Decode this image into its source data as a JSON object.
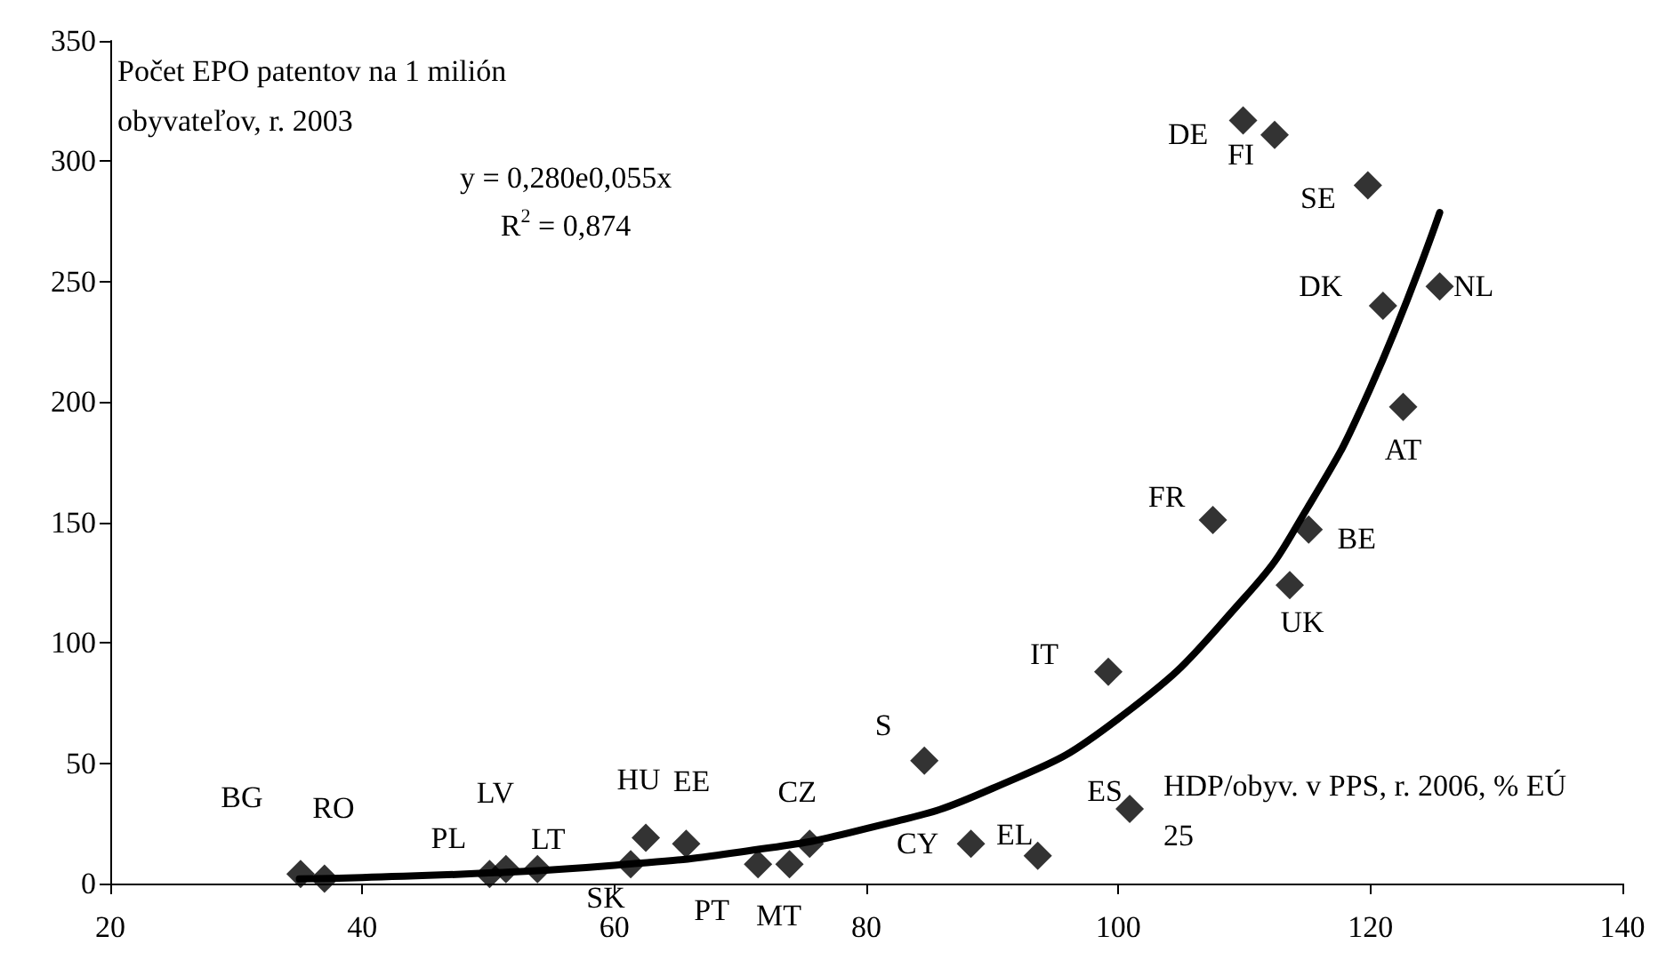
{
  "chart_data": {
    "type": "scatter",
    "ylabel": "Počet EPO patentov na 1 milión obyvateľov, r. 2003",
    "xlabel": "HDP/obyv. v PPS, r. 2006, % EÚ 25",
    "xlim": [
      20,
      140
    ],
    "xticks": [
      20,
      40,
      60,
      80,
      100,
      120,
      140
    ],
    "ylim": [
      0,
      350
    ],
    "yticks": [
      0,
      50,
      100,
      150,
      200,
      250,
      300,
      350
    ],
    "grid": false,
    "series": [
      {
        "marker": "diamond",
        "color": "#000000",
        "x": [
          35.1,
          37.0,
          50.1,
          51.4,
          53.9,
          61.3,
          62.5,
          65.7,
          71.4,
          73.9,
          75.5,
          84.6,
          88.3,
          93.6,
          100.9,
          99.2,
          107.5,
          115.1,
          113.6,
          109.9,
          112.4,
          119.8,
          121.0,
          125.5,
          122.6
        ],
        "values": [
          4,
          2,
          4,
          6,
          6,
          8,
          19,
          16.5,
          8,
          8,
          16.5,
          51,
          16.5,
          11.5,
          31,
          88,
          151,
          147,
          124,
          317,
          311,
          290,
          240,
          248,
          198
        ]
      },
      {
        "type": "line",
        "marker": "none",
        "line_style": "solid",
        "color": "#000000",
        "x": [
          35,
          40,
          50,
          60,
          70,
          80,
          90,
          100,
          110,
          115,
          120,
          125.5
        ],
        "values": [
          1.9,
          2.5,
          4.4,
          7.6,
          13.1,
          22.8,
          39.5,
          68.5,
          118.7,
          156,
          205.8,
          278.7
        ]
      }
    ],
    "annotations": [
      "y = 0,280e0,055x",
      "R$^{2}$ = 0,874",
      {
        "text": "BG",
        "x": 35.1,
        "y": 4
      },
      {
        "text": "RO",
        "x": 37.0,
        "y": 2
      },
      {
        "text": "PL",
        "x": 50.1,
        "y": 4
      },
      {
        "text": "LV",
        "x": 51.4,
        "y": 6
      },
      {
        "text": "LT",
        "x": 53.9,
        "y": 6
      },
      {
        "text": "SK",
        "x": 61.3,
        "y": 8
      },
      {
        "text": "HU",
        "x": 62.5,
        "y": 19
      },
      {
        "text": "EE",
        "x": 65.7,
        "y": 16.5
      },
      {
        "text": "PT",
        "x": 71.4,
        "y": 8
      },
      {
        "text": "MT",
        "x": 73.9,
        "y": 8
      },
      {
        "text": "CZ",
        "x": 75.5,
        "y": 16.5
      },
      {
        "text": "S",
        "x": 84.6,
        "y": 51
      },
      {
        "text": "CY",
        "x": 88.3,
        "y": 16.5
      },
      {
        "text": "EL",
        "x": 93.6,
        "y": 11.5
      },
      {
        "text": "ES",
        "x": 100.9,
        "y": 31
      },
      {
        "text": "IT",
        "x": 99.2,
        "y": 88
      },
      {
        "text": "FR",
        "x": 107.5,
        "y": 151
      },
      {
        "text": "BE",
        "x": 115.1,
        "y": 147
      },
      {
        "text": "UK",
        "x": 113.6,
        "y": 124
      },
      {
        "text": "DE",
        "x": 109.9,
        "y": 317
      },
      {
        "text": "FI",
        "x": 112.4,
        "y": 311
      },
      {
        "text": "SE",
        "x": 119.8,
        "y": 290
      },
      {
        "text": "DK",
        "x": 121.0,
        "y": 240
      },
      {
        "text": "NL",
        "x": 125.5,
        "y": 248
      },
      {
        "text": "AT",
        "x": 122.6,
        "y": 198
      }
    ]
  }
}
